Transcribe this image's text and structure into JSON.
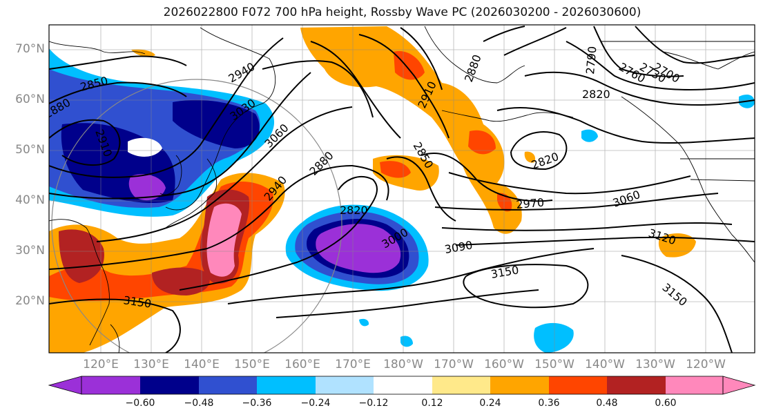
{
  "title": "2026022800 F072 700 hPa height, Rossby Wave PC (2026030200 - 2026030600)",
  "lat_labels": [
    "70°N",
    "60°N",
    "50°N",
    "40°N",
    "30°N",
    "20°N"
  ],
  "lon_labels": [
    "120°E",
    "130°E",
    "140°E",
    "150°E",
    "160°E",
    "170°E",
    "180°W",
    "170°W",
    "160°W",
    "150°W",
    "140°W",
    "130°W",
    "120°W"
  ],
  "contour_labels": [
    {
      "text": "2850"
    },
    {
      "text": "2880"
    },
    {
      "text": "2940"
    },
    {
      "text": "3030"
    },
    {
      "text": "3060"
    },
    {
      "text": "2910"
    },
    {
      "text": "2940"
    },
    {
      "text": "2880"
    },
    {
      "text": "2820"
    },
    {
      "text": "3000"
    },
    {
      "text": "3090"
    },
    {
      "text": "3150"
    },
    {
      "text": "3150"
    },
    {
      "text": "2910"
    },
    {
      "text": "2850"
    },
    {
      "text": "2880"
    },
    {
      "text": "2790"
    },
    {
      "text": "2760"
    },
    {
      "text": "2730"
    },
    {
      "text": "2700"
    },
    {
      "text": "2820"
    },
    {
      "text": "2820"
    },
    {
      "text": "2970"
    },
    {
      "text": "3060"
    },
    {
      "text": "3120"
    },
    {
      "text": "3150"
    }
  ],
  "colorbar": {
    "colors": [
      "#9b30d8",
      "#00008b",
      "#3050d0",
      "#00bfff",
      "#b0e2ff",
      "#ffffff",
      "#ffe98a",
      "#ffa500",
      "#ff4500",
      "#b22222",
      "#ff88bb"
    ],
    "labels": [
      "−0.60",
      "−0.48",
      "−0.36",
      "−0.24",
      "−0.12",
      "0.12",
      "0.24",
      "0.36",
      "0.48",
      "0.60"
    ]
  }
}
